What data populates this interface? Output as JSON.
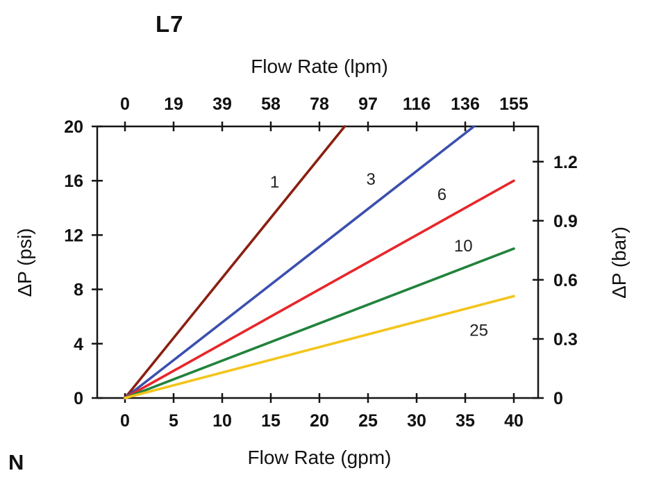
{
  "page": {
    "corner_label": "N"
  },
  "chart_data": {
    "type": "line",
    "title": "L7",
    "top_axis": {
      "label": "Flow Rate (lpm)",
      "ticks": [
        0,
        19,
        39,
        58,
        78,
        97,
        116,
        136,
        155
      ]
    },
    "bottom_axis": {
      "label": "Flow Rate (gpm)",
      "ticks": [
        0,
        5,
        10,
        15,
        20,
        25,
        30,
        35,
        40
      ],
      "range": [
        0,
        40
      ]
    },
    "left_axis": {
      "label": "ΔP (psi)",
      "ticks": [
        0,
        4,
        8,
        12,
        16,
        20
      ],
      "range": [
        0,
        20
      ]
    },
    "right_axis": {
      "label": "ΔP (bar)",
      "ticks": [
        0,
        0.3,
        0.6,
        0.9,
        1.2
      ],
      "range": [
        0,
        1.379
      ]
    },
    "grid": false,
    "legend": "inline-labels",
    "series": [
      {
        "name": "1",
        "color": "#8a2011",
        "points": [
          [
            0,
            0
          ],
          [
            22.6,
            20
          ]
        ],
        "label_pos": [
          15.4,
          15.9
        ]
      },
      {
        "name": "3",
        "color": "#3b4fae",
        "points": [
          [
            0,
            0
          ],
          [
            35.9,
            20
          ]
        ],
        "label_pos": [
          25.3,
          16.1
        ]
      },
      {
        "name": "6",
        "color": "#e8262a",
        "points": [
          [
            0,
            0
          ],
          [
            40,
            16
          ]
        ],
        "label_pos": [
          32.6,
          15.0
        ]
      },
      {
        "name": "10",
        "color": "#21833c",
        "points": [
          [
            0,
            0
          ],
          [
            40,
            11
          ]
        ],
        "label_pos": [
          34.8,
          11.2
        ]
      },
      {
        "name": "25",
        "color": "#f3c51c",
        "points": [
          [
            0,
            0
          ],
          [
            40,
            7.5
          ]
        ],
        "label_pos": [
          36.4,
          5.0
        ]
      }
    ]
  }
}
